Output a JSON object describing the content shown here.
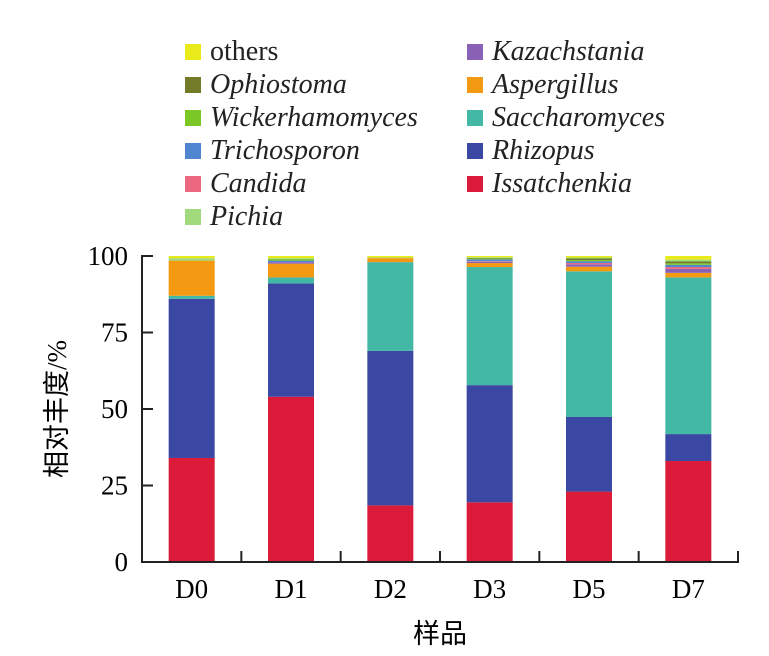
{
  "chart_data": {
    "type": "bar",
    "stacked": true,
    "title": "",
    "xlabel": "样品",
    "ylabel": "相对丰度/%",
    "ylim": [
      0,
      100
    ],
    "yticks": [
      "0",
      "25",
      "50",
      "75",
      "100"
    ],
    "ytick_values": [
      0,
      25,
      50,
      75,
      100
    ],
    "categories": [
      "D0",
      "D1",
      "D2",
      "D3",
      "D5",
      "D7"
    ],
    "legend_position": "top",
    "grid": false,
    "series": [
      {
        "name": "Issatchenkia",
        "italic": true,
        "color": "#dc1a3a",
        "values": [
          34,
          54,
          18.5,
          19.5,
          23,
          33
        ]
      },
      {
        "name": "Rhizopus",
        "italic": true,
        "color": "#3b48a3",
        "values": [
          52,
          37,
          50.5,
          38.3,
          24.4,
          8.8
        ]
      },
      {
        "name": "Saccharomyces",
        "italic": true,
        "color": "#43b8a4",
        "values": [
          1,
          2,
          29,
          38.6,
          47.6,
          51.2
        ]
      },
      {
        "name": "Aspergillus",
        "italic": true,
        "color": "#f39a12",
        "values": [
          11.5,
          4.5,
          1.3,
          1.3,
          1.5,
          1.5
        ]
      },
      {
        "name": "Kazachstania",
        "italic": true,
        "color": "#8a62b5",
        "values": [
          0,
          0.5,
          0,
          0.4,
          0.8,
          1.3
        ]
      },
      {
        "name": "Candida",
        "italic": true,
        "color": "#ec6880",
        "values": [
          0,
          0,
          0,
          0.2,
          0.4,
          0.6
        ]
      },
      {
        "name": "Trichosporon",
        "italic": true,
        "color": "#4f86cf",
        "values": [
          0,
          0.5,
          0,
          0.6,
          0.6,
          0.7
        ]
      },
      {
        "name": "Wickerhamomyces",
        "italic": true,
        "color": "#7ac725",
        "values": [
          0,
          0.5,
          0,
          0.3,
          0.4,
          0.5
        ]
      },
      {
        "name": "Ophiostoma",
        "italic": true,
        "color": "#737b28",
        "values": [
          0,
          0,
          0,
          0.2,
          0.5,
          0.6
        ]
      },
      {
        "name": "Pichia",
        "italic": true,
        "color": "#a0da7c",
        "values": [
          0.8,
          0.3,
          0.2,
          0.2,
          0.3,
          0.6
        ]
      },
      {
        "name": "others",
        "italic": false,
        "color": "#e9ea19",
        "values": [
          0.7,
          0.7,
          0.5,
          0.4,
          0.5,
          1.2
        ]
      }
    ],
    "legend_order": [
      "others",
      "Kazachstania",
      "Ophiostoma",
      "Aspergillus",
      "Wickerhamomyces",
      "Saccharomyces",
      "Trichosporon",
      "Rhizopus",
      "Candida",
      "Issatchenkia",
      "Pichia"
    ]
  }
}
